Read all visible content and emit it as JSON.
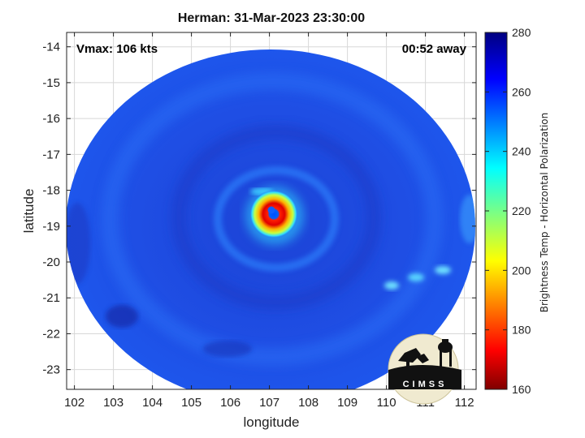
{
  "title": "Herman: 31-Mar-2023 23:30:00",
  "annotations": {
    "vmax": "Vmax: 106 kts",
    "time_away": "00:52 away"
  },
  "logo_text": "CIMSS",
  "colors": {
    "background_disk": "#1e47d8",
    "eye": "#d80000",
    "eyewall_warm": "#ffe000",
    "plot_frame": "#222222"
  },
  "chart_data": {
    "type": "heatmap",
    "title": "Herman: 31-Mar-2023 23:30:00",
    "xlabel": "longitude",
    "ylabel": "latitude",
    "xlim": [
      101.8,
      112.3
    ],
    "ylim": [
      -23.55,
      -13.6
    ],
    "xticks": [
      "102",
      "103",
      "104",
      "105",
      "106",
      "107",
      "108",
      "109",
      "110",
      "111",
      "112"
    ],
    "yticks": [
      "-14",
      "-15",
      "-16",
      "-17",
      "-18",
      "-19",
      "-20",
      "-21",
      "-22",
      "-23"
    ],
    "grid": true,
    "colorbar": {
      "label": "Brightness Temp - Horizontal Polarization",
      "min": 160,
      "max": 280,
      "ticks": [
        "160",
        "180",
        "200",
        "220",
        "240",
        "260",
        "280"
      ]
    },
    "swath": {
      "center_lon": 107.0,
      "center_lat": -18.6
    },
    "storm_center": {
      "lon": 107.1,
      "lat": -18.55
    },
    "features": [
      {
        "name": "eye",
        "lon": 107.1,
        "lat": -18.55,
        "tb": 175
      },
      {
        "name": "eyewall",
        "lon": 107.1,
        "lat": -18.6,
        "tb": 200
      },
      {
        "name": "inner rainband",
        "lon": 106.8,
        "lat": -18.0,
        "tb": 225
      },
      {
        "name": "convective patch",
        "lon": 111.0,
        "lat": -20.6,
        "tb": 245
      }
    ]
  }
}
